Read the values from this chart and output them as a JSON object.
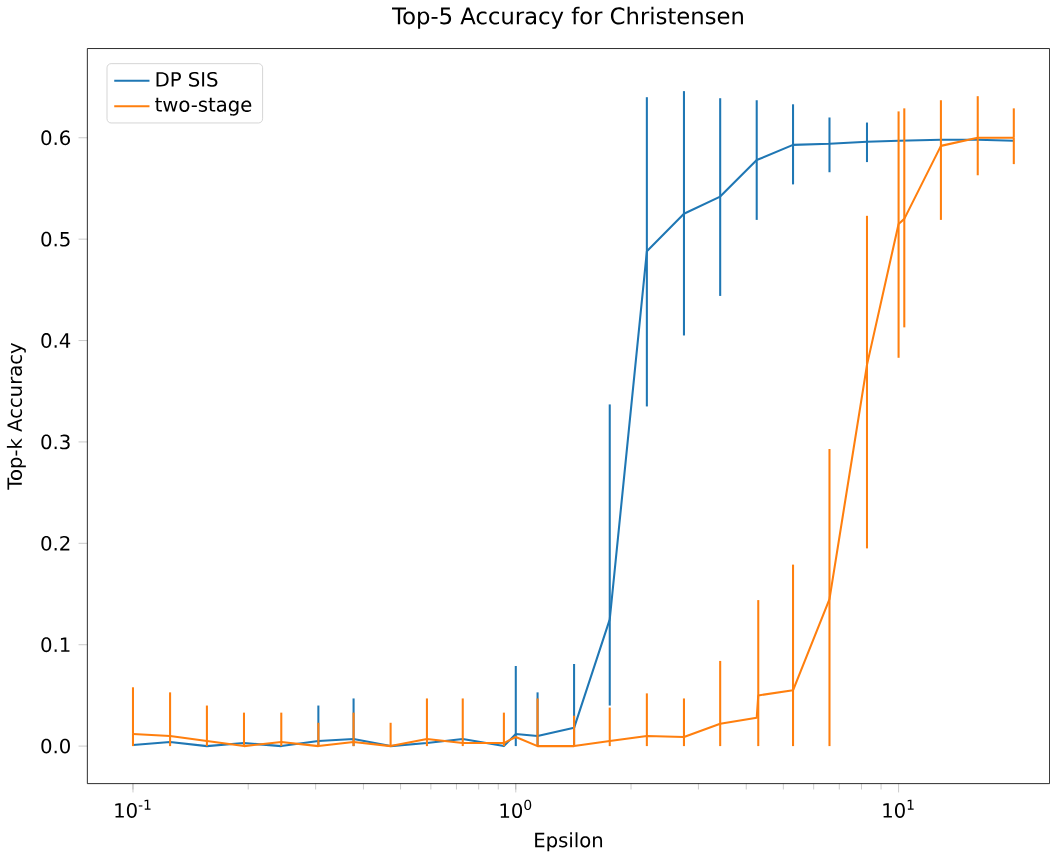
{
  "chart_data": {
    "type": "line",
    "title": "Top-5 Accuracy for Christensen",
    "xlabel": "Epsilon",
    "ylabel": "Top-k Accuracy",
    "log": "x",
    "xlim": [
      0.076,
      24.8
    ],
    "ylim": [
      -0.037,
      0.688
    ],
    "xticks": [
      {
        "value": 0.1,
        "label": "10$^{-1}$"
      },
      {
        "value": 1,
        "label": "10$^{0}$"
      },
      {
        "value": 10,
        "label": "10$^{1}$"
      }
    ],
    "yticks": [
      {
        "value": 0,
        "label": "0.0"
      },
      {
        "value": 0.1,
        "label": "0.1"
      },
      {
        "value": 0.2,
        "label": "0.2"
      },
      {
        "value": 0.3,
        "label": "0.3"
      },
      {
        "value": 0.4,
        "label": "0.4"
      },
      {
        "value": 0.5,
        "label": "0.5"
      },
      {
        "value": 0.6,
        "label": "0.6"
      }
    ],
    "legend": "top left",
    "marker": "none",
    "line_style": "solid",
    "series": [
      {
        "name": "DP SIS",
        "color": "#1f77b4",
        "x": [
          0.1,
          0.125,
          0.156,
          0.195,
          0.244,
          0.305,
          0.377,
          0.471,
          0.586,
          0.727,
          0.931,
          1.0,
          1.14,
          1.42,
          1.76,
          2.2,
          2.75,
          3.42,
          4.26,
          5.3,
          6.6,
          8.27,
          10,
          12.9,
          16.1,
          20
        ],
        "values": [
          0.001,
          0.004,
          0.0,
          0.003,
          0.0,
          0.005,
          0.007,
          0.0,
          0.003,
          0.007,
          0.0,
          0.012,
          0.01,
          0.018,
          0.125,
          0.488,
          0.525,
          0.542,
          0.578,
          0.593,
          0.594,
          0.596,
          0.597,
          0.598,
          0.598,
          0.597
        ],
        "errors": [
          null,
          null,
          null,
          null,
          null,
          [
            0,
            0.04
          ],
          [
            0,
            0.047
          ],
          null,
          null,
          null,
          null,
          [
            0,
            0.079
          ],
          [
            0,
            0.053
          ],
          [
            0,
            0.081
          ],
          [
            0.04,
            0.337
          ],
          [
            0.335,
            0.64
          ],
          [
            0.405,
            0.646
          ],
          [
            0.444,
            0.639
          ],
          [
            0.519,
            0.637
          ],
          [
            0.554,
            0.633
          ],
          [
            0.566,
            0.62
          ],
          [
            0.576,
            0.615
          ],
          null,
          null,
          null,
          null
        ]
      },
      {
        "name": "two-stage",
        "color": "#ff7f0e",
        "x": [
          0.1,
          0.125,
          0.156,
          0.195,
          0.244,
          0.305,
          0.377,
          0.471,
          0.586,
          0.727,
          0.931,
          1.0,
          1.14,
          1.42,
          1.76,
          2.2,
          2.75,
          3.42,
          4.26,
          4.3,
          5.3,
          6.6,
          8.27,
          10,
          10.35,
          12.9,
          16.1,
          20
        ],
        "values": [
          0.012,
          0.01,
          0.005,
          0.0,
          0.004,
          0.0,
          0.004,
          0.0,
          0.007,
          0.003,
          0.003,
          0.009,
          0.0,
          0.0,
          0.005,
          0.01,
          0.009,
          0.022,
          0.028,
          0.05,
          0.055,
          0.145,
          0.376,
          0.515,
          0.52,
          0.592,
          0.6,
          0.6
        ],
        "errors": [
          [
            0,
            0.058
          ],
          [
            0,
            0.053
          ],
          [
            0,
            0.04
          ],
          [
            0,
            0.033
          ],
          [
            0,
            0.033
          ],
          [
            0,
            0.023
          ],
          [
            0,
            0.033
          ],
          [
            0,
            0.023
          ],
          [
            0,
            0.047
          ],
          [
            0,
            0.047
          ],
          [
            0,
            0.033
          ],
          null,
          [
            0,
            0.047
          ],
          [
            0,
            0.03
          ],
          [
            0,
            0.038
          ],
          [
            0,
            0.052
          ],
          [
            0,
            0.047
          ],
          [
            0,
            0.084
          ],
          null,
          [
            0,
            0.144
          ],
          [
            0,
            0.179
          ],
          [
            0,
            0.293
          ],
          [
            0.195,
            0.523
          ],
          [
            0.383,
            0.626
          ],
          [
            0.413,
            0.629
          ],
          [
            0.519,
            0.637
          ],
          [
            0.563,
            0.641
          ],
          [
            0.574,
            0.629
          ]
        ]
      }
    ]
  }
}
